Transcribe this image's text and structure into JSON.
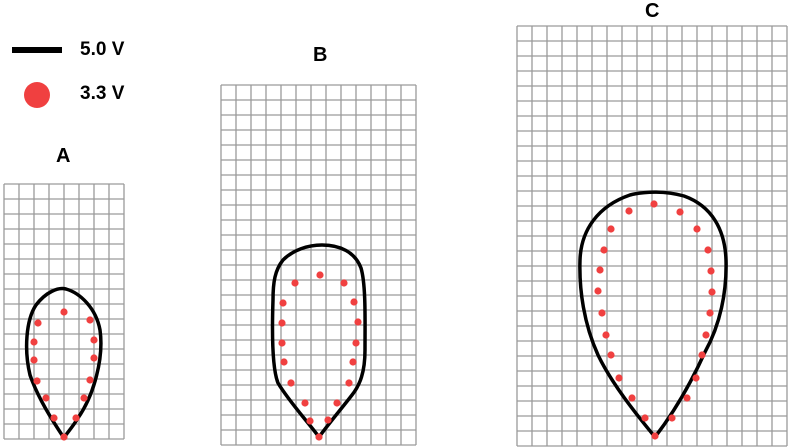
{
  "legend": {
    "line": {
      "label": "5.0 V",
      "color": "#000000"
    },
    "dot": {
      "label": "3.3 V",
      "color": "#f04040"
    }
  },
  "panels": [
    {
      "label": "A",
      "grid_color": "#9a9a9a"
    },
    {
      "label": "B",
      "grid_color": "#9a9a9a"
    },
    {
      "label": "C",
      "grid_color": "#9a9a9a"
    }
  ]
}
